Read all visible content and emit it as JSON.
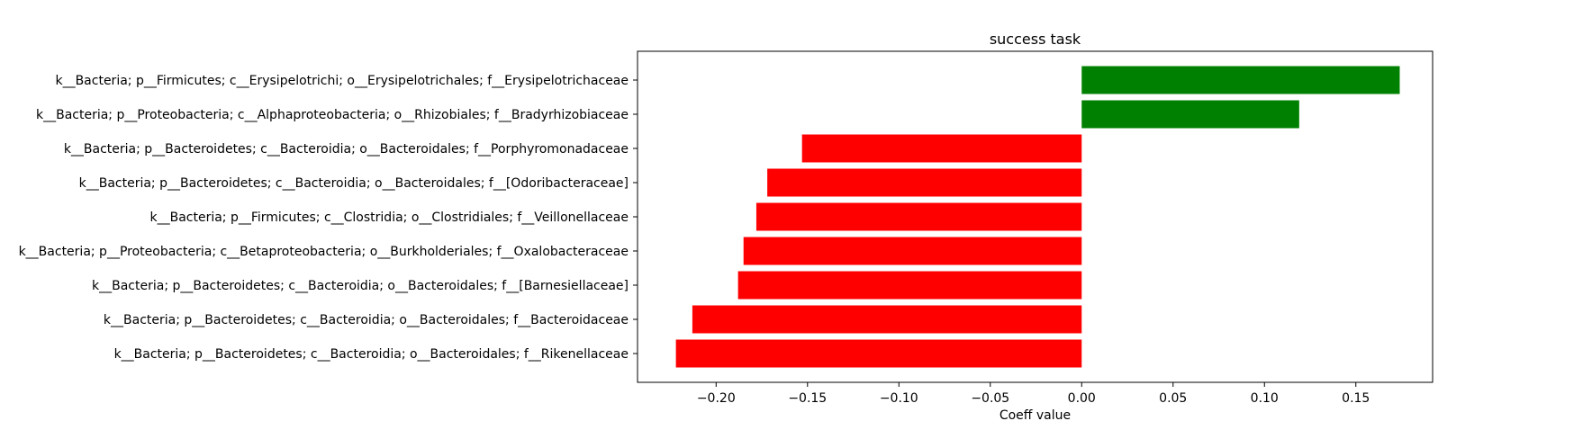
{
  "chart_data": {
    "type": "bar",
    "orientation": "horizontal",
    "title": "success task",
    "xlabel": "Coeff value",
    "ylabel": "",
    "xlim": [
      -0.243,
      0.192
    ],
    "xticks": [
      -0.2,
      -0.15,
      -0.1,
      -0.05,
      0.0,
      0.05,
      0.1,
      0.15
    ],
    "xtick_labels": [
      "−0.20",
      "−0.15",
      "−0.10",
      "−0.05",
      "0.00",
      "0.05",
      "0.10",
      "0.15"
    ],
    "grid": false,
    "legend": "none",
    "colors": {
      "positive": "#008000",
      "negative": "#ff0000"
    },
    "categories": [
      "k__Bacteria; p__Firmicutes; c__Erysipelotrichi; o__Erysipelotrichales; f__Erysipelotrichaceae",
      "k__Bacteria; p__Proteobacteria; c__Alphaproteobacteria; o__Rhizobiales; f__Bradyrhizobiaceae",
      "k__Bacteria; p__Bacteroidetes; c__Bacteroidia; o__Bacteroidales; f__Porphyromonadaceae",
      "k__Bacteria; p__Bacteroidetes; c__Bacteroidia; o__Bacteroidales; f__[Odoribacteraceae]",
      "k__Bacteria; p__Firmicutes; c__Clostridia; o__Clostridiales; f__Veillonellaceae",
      "k__Bacteria; p__Proteobacteria; c__Betaproteobacteria; o__Burkholderiales; f__Oxalobacteraceae",
      "k__Bacteria; p__Bacteroidetes; c__Bacteroidia; o__Bacteroidales; f__[Barnesiellaceae]",
      "k__Bacteria; p__Bacteroidetes; c__Bacteroidia; o__Bacteroidales; f__Bacteroidaceae",
      "k__Bacteria; p__Bacteroidetes; c__Bacteroidia; o__Bacteroidales; f__Rikenellaceae"
    ],
    "values": [
      0.174,
      0.119,
      -0.153,
      -0.172,
      -0.178,
      -0.185,
      -0.188,
      -0.213,
      -0.222
    ]
  }
}
